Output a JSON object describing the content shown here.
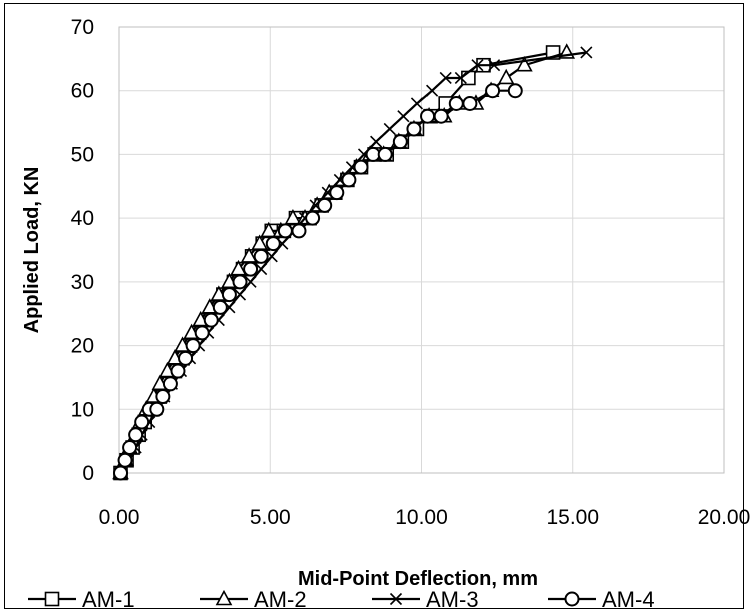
{
  "chart_data": {
    "type": "line",
    "title": "",
    "xlabel": "Mid-Point Deflection, mm",
    "ylabel": "Applied Load, KN",
    "xlim": [
      0,
      20
    ],
    "ylim": [
      0,
      70
    ],
    "x_ticks": [
      "0.00",
      "5.00",
      "10.00",
      "15.00",
      "20.00"
    ],
    "y_ticks": [
      "0",
      "10",
      "20",
      "30",
      "40",
      "50",
      "60",
      "70"
    ],
    "grid": "on",
    "legend_position": "bottom",
    "series": [
      {
        "name": "AM-1",
        "marker": "square",
        "x": [
          0.05,
          0.25,
          0.45,
          0.65,
          0.85,
          1.1,
          1.35,
          1.55,
          1.85,
          2.1,
          2.35,
          2.65,
          2.9,
          3.2,
          3.45,
          3.8,
          4.1,
          4.4,
          4.75,
          5.05,
          5.45,
          5.85,
          6.3,
          6.7,
          7.15,
          7.55,
          8.0,
          8.45,
          8.85,
          9.35,
          9.85,
          10.3,
          10.8,
          11.55,
          12.05,
          14.35
        ],
        "y": [
          0,
          2,
          4,
          6,
          8,
          10,
          12,
          14,
          16,
          18,
          20,
          22,
          24,
          26,
          28,
          30,
          32,
          34,
          36,
          38,
          38,
          40,
          40,
          42,
          44,
          46,
          48,
          50,
          50,
          52,
          54,
          56,
          58,
          62,
          64,
          66
        ]
      },
      {
        "name": "AM-2",
        "marker": "triangle",
        "x": [
          0.05,
          0.2,
          0.35,
          0.55,
          0.7,
          0.9,
          1.15,
          1.35,
          1.6,
          1.85,
          2.1,
          2.4,
          2.7,
          3.0,
          3.3,
          3.65,
          3.95,
          4.3,
          4.65,
          4.95,
          5.35,
          5.75,
          6.15,
          6.55,
          6.95,
          7.4,
          7.85,
          8.3,
          8.75,
          9.25,
          9.75,
          10.25,
          10.75,
          11.25,
          11.8,
          12.3,
          12.8,
          13.4,
          14.8
        ],
        "y": [
          0,
          2,
          4,
          6,
          8,
          10,
          12,
          14,
          16,
          18,
          20,
          22,
          24,
          26,
          28,
          30,
          32,
          34,
          36,
          38,
          38,
          40,
          40,
          42,
          44,
          46,
          48,
          50,
          50,
          52,
          54,
          56,
          56,
          58,
          58,
          60,
          62,
          64,
          66
        ]
      },
      {
        "name": "AM-3",
        "marker": "x",
        "x": [
          0.05,
          0.3,
          0.55,
          0.75,
          1.0,
          1.25,
          1.5,
          1.75,
          2.05,
          2.35,
          2.65,
          2.95,
          3.3,
          3.65,
          4.0,
          4.35,
          4.7,
          5.05,
          5.4,
          5.8,
          6.15,
          6.5,
          6.9,
          7.3,
          7.7,
          8.1,
          8.5,
          8.95,
          9.4,
          9.85,
          10.35,
          10.8,
          11.3,
          11.85,
          12.4,
          15.45
        ],
        "y": [
          0,
          2,
          4,
          6,
          8,
          10,
          12,
          14,
          16,
          18,
          20,
          22,
          24,
          26,
          28,
          30,
          32,
          34,
          36,
          38,
          40,
          42,
          44,
          46,
          48,
          50,
          52,
          54,
          56,
          58,
          60,
          62,
          62,
          64,
          64,
          66
        ]
      },
      {
        "name": "AM-4",
        "marker": "circle",
        "x": [
          0.05,
          0.2,
          0.35,
          0.55,
          0.75,
          1.0,
          1.25,
          1.45,
          1.7,
          1.95,
          2.2,
          2.45,
          2.75,
          3.05,
          3.35,
          3.65,
          4.0,
          4.35,
          4.7,
          5.1,
          5.5,
          5.95,
          6.4,
          6.8,
          7.2,
          7.6,
          8.0,
          8.4,
          8.8,
          9.3,
          9.75,
          10.2,
          10.65,
          11.15,
          11.6,
          12.35,
          13.1
        ],
        "y": [
          0,
          2,
          4,
          6,
          8,
          10,
          10,
          12,
          14,
          16,
          18,
          20,
          22,
          24,
          26,
          28,
          30,
          32,
          34,
          36,
          38,
          38,
          40,
          42,
          44,
          46,
          48,
          50,
          50,
          52,
          54,
          56,
          56,
          58,
          58,
          60,
          60
        ]
      }
    ]
  }
}
